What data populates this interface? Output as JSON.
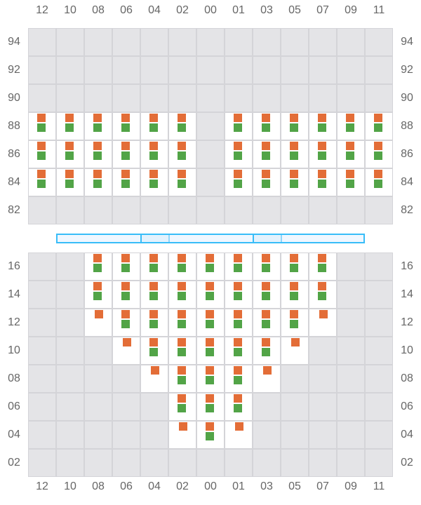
{
  "colors": {
    "primary_marker": "#e36d37",
    "secondary_marker": "#52a447",
    "active_cell": "#ffffff",
    "inactive_cell": "#e4e4e7",
    "bar_border": "#38bdf8"
  },
  "columns": [
    "12",
    "10",
    "08",
    "06",
    "04",
    "02",
    "00",
    "01",
    "03",
    "05",
    "07",
    "09",
    "11"
  ],
  "top_section": {
    "rows": [
      "94",
      "92",
      "90",
      "88",
      "86",
      "84",
      "82"
    ],
    "cells": {
      "88": [
        "both",
        "both",
        "both",
        "both",
        "both",
        "both",
        "none",
        "both",
        "both",
        "both",
        "both",
        "both",
        "both"
      ],
      "86": [
        "both",
        "both",
        "both",
        "both",
        "both",
        "both",
        "none",
        "both",
        "both",
        "both",
        "both",
        "both",
        "both"
      ],
      "84": [
        "both",
        "both",
        "both",
        "both",
        "both",
        "both",
        "none",
        "both",
        "both",
        "both",
        "both",
        "both",
        "both"
      ]
    }
  },
  "bar": {
    "segments": [
      "normal",
      "highlight",
      "normal",
      "highlight",
      "normal"
    ]
  },
  "bottom_section": {
    "rows": [
      "16",
      "14",
      "12",
      "10",
      "08",
      "06",
      "04",
      "02"
    ],
    "cells": {
      "16": [
        "none",
        "none",
        "both",
        "both",
        "both",
        "both",
        "both",
        "both",
        "both",
        "both",
        "both",
        "none",
        "none"
      ],
      "14": [
        "none",
        "none",
        "both",
        "both",
        "both",
        "both",
        "both",
        "both",
        "both",
        "both",
        "both",
        "none",
        "none"
      ],
      "12": [
        "none",
        "none",
        "orange",
        "both",
        "both",
        "both",
        "both",
        "both",
        "both",
        "both",
        "orange",
        "none",
        "none"
      ],
      "10": [
        "none",
        "none",
        "none",
        "orange",
        "both",
        "both",
        "both",
        "both",
        "both",
        "orange",
        "none",
        "none",
        "none"
      ],
      "08": [
        "none",
        "none",
        "none",
        "none",
        "orange",
        "both",
        "both",
        "both",
        "orange",
        "none",
        "none",
        "none",
        "none"
      ],
      "06": [
        "none",
        "none",
        "none",
        "none",
        "none",
        "both",
        "both",
        "both",
        "none",
        "none",
        "none",
        "none",
        "none"
      ],
      "04": [
        "none",
        "none",
        "none",
        "none",
        "none",
        "orange",
        "both",
        "orange",
        "none",
        "none",
        "none",
        "none",
        "none"
      ]
    }
  }
}
